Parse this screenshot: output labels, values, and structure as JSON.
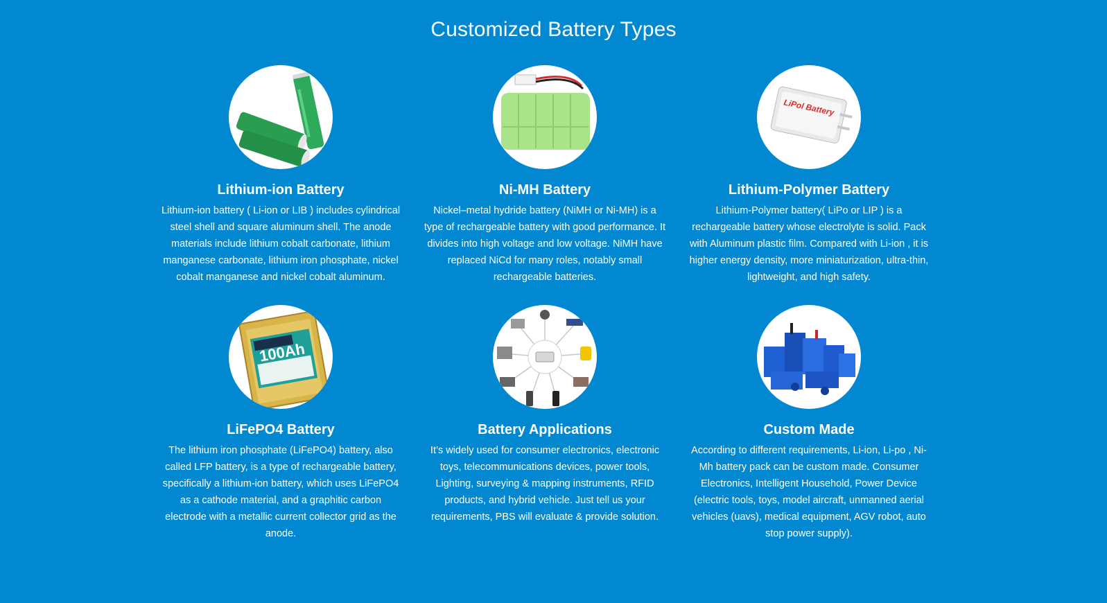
{
  "section": {
    "title": "Customized Battery Types"
  },
  "cards": [
    {
      "title": "Lithium-ion Battery",
      "description": "Lithium-ion battery ( Li-ion or LIB ) includes cylindrical steel shell and square aluminum shell. The anode materials include lithium cobalt carbonate, lithium manganese carbonate, lithium iron phosphate, nickel cobalt manganese and nickel cobalt aluminum.",
      "image": "cylindrical-cells-image"
    },
    {
      "title": "Ni-MH Battery",
      "description": "Nickel–metal hydride battery (NiMH or Ni-MH) is a type of rechargeable battery with good performance. It divides into high voltage and low voltage. NiMH have replaced NiCd for many roles, notably small rechargeable batteries.",
      "image": "nimh-pack-image"
    },
    {
      "title": "Lithium-Polymer Battery",
      "description": "Lithium-Polymer battery( LiPo or LIP ) is a rechargeable battery whose electrolyte is solid. Pack with Aluminum plastic film. Compared with Li-ion , it is higher energy density, more miniaturization, ultra-thin, lightweight, and high safety.",
      "image": "lipo-pouch-image",
      "image_label": "LiPol Battery"
    },
    {
      "title": "LiFePO4 Battery",
      "description": "The lithium iron phosphate (LiFePO4) battery, also called LFP battery, is a type of rechargeable battery, specifically a lithium-ion battery, which uses LiFePO4 as a cathode material, and a graphitic carbon electrode with a metallic current collector grid as the anode.",
      "image": "lifepo4-cell-image",
      "image_label": "100Ah"
    },
    {
      "title": "Battery Applications",
      "description": "It’s widely used for consumer electronics, electronic toys, telecommunications devices, power tools, Lighting, surveying & mapping instruments, RFID products, and hybrid vehicle. Just tell us your requirements, PBS will evaluate & provide solution.",
      "image": "applications-image"
    },
    {
      "title": "Custom Made",
      "description": "According to different requirements, Li-ion, Li-po , Ni-Mh battery pack can be custom made. Consumer Electronics, Intelligent Household, Power Device (electric tools, toys, model aircraft, unmanned aerial vehicles (uavs), medical equipment, AGV robot, auto stop power supply).",
      "image": "custom-packs-image"
    }
  ]
}
